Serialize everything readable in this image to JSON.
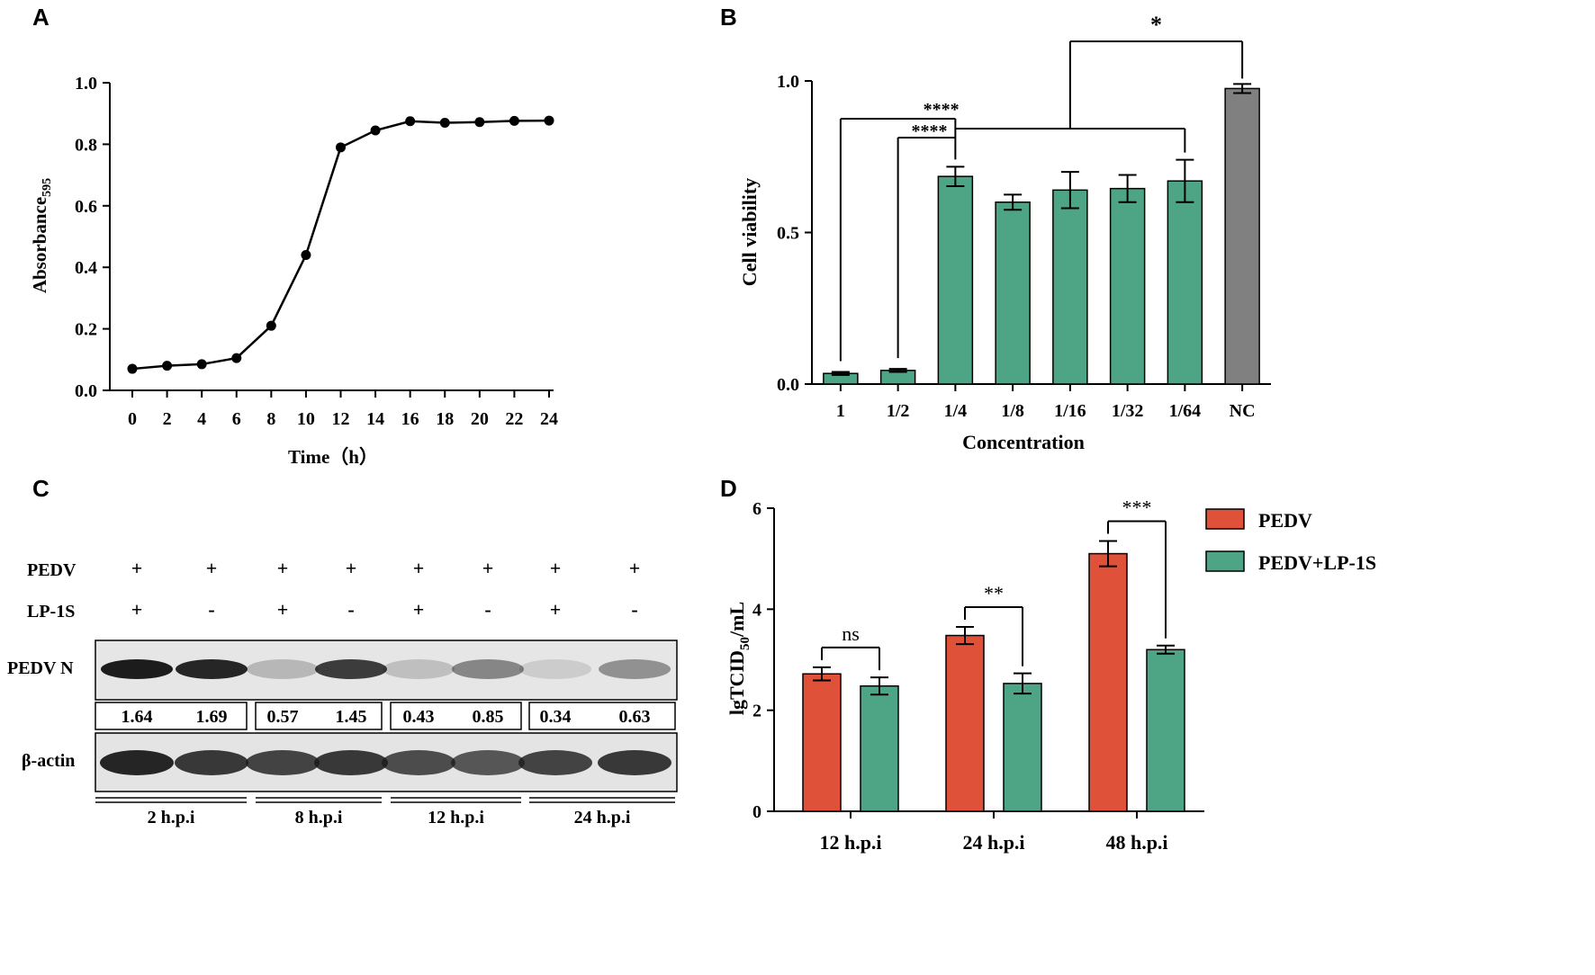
{
  "panels": {
    "a": "A",
    "b": "B",
    "c": "C",
    "d": "D"
  },
  "chart_data": [
    {
      "panel": "A",
      "type": "line",
      "title": "",
      "xlabel": "Time（h）",
      "ylabel": "Absorbance",
      "ylabel_sub": "595",
      "x": [
        0,
        2,
        4,
        6,
        8,
        10,
        12,
        14,
        16,
        18,
        20,
        22,
        24
      ],
      "values": [
        0.07,
        0.08,
        0.085,
        0.105,
        0.21,
        0.44,
        0.79,
        0.845,
        0.875,
        0.87,
        0.872,
        0.876,
        0.877
      ],
      "xticks": [
        "0",
        "2",
        "4",
        "6",
        "8",
        "10",
        "12",
        "14",
        "16",
        "18",
        "20",
        "22",
        "24"
      ],
      "yticks": [
        "0.0",
        "0.2",
        "0.4",
        "0.6",
        "0.8",
        "1.0"
      ],
      "ylim": [
        0,
        1.0
      ]
    },
    {
      "panel": "B",
      "type": "bar",
      "title": "",
      "xlabel": "Concentration",
      "ylabel": "Cell viability",
      "categories": [
        "1",
        "1/2",
        "1/4",
        "1/8",
        "1/16",
        "1/32",
        "1/64",
        "NC"
      ],
      "values": [
        0.035,
        0.045,
        0.685,
        0.6,
        0.64,
        0.645,
        0.67,
        0.975
      ],
      "errors": [
        0.005,
        0.005,
        0.032,
        0.025,
        0.06,
        0.045,
        0.07,
        0.015
      ],
      "colors": [
        "#4ea585",
        "#4ea585",
        "#4ea585",
        "#4ea585",
        "#4ea585",
        "#4ea585",
        "#4ea585",
        "#808080"
      ],
      "yticks": [
        "0.0",
        "0.5",
        "1.0"
      ],
      "ylim": [
        0,
        1.0
      ],
      "significance": [
        "****",
        "****",
        "*"
      ]
    },
    {
      "panel": "D",
      "type": "bar",
      "title": "",
      "xlabel": "",
      "ylabel": "lgTCID",
      "ylabel_sub": "50",
      "ylabel_tail": "/mL",
      "categories": [
        "12 h.p.i",
        "24 h.p.i",
        "48 h.p.i"
      ],
      "series": [
        {
          "name": "PEDV",
          "color": "#e0513a",
          "values": [
            2.72,
            3.48,
            5.1
          ],
          "errors": [
            0.13,
            0.17,
            0.25
          ]
        },
        {
          "name": "PEDV+LP-1S",
          "color": "#4ea585",
          "values": [
            2.48,
            2.53,
            3.2
          ],
          "errors": [
            0.17,
            0.2,
            0.08
          ]
        }
      ],
      "yticks": [
        "0",
        "2",
        "4",
        "6"
      ],
      "ylim": [
        0,
        6
      ],
      "significance": [
        "ns",
        "**",
        "***"
      ]
    }
  ],
  "blot": {
    "row_labels": {
      "pedv": "PEDV",
      "lp": "LP-1S",
      "band_n": "PEDV N",
      "band_actin": "β-actin"
    },
    "pedv_signs": [
      "+",
      "+",
      "+",
      "+",
      "+",
      "+",
      "+",
      "+"
    ],
    "lp_signs": [
      "+",
      "-",
      "+",
      "-",
      "+",
      "-",
      "+",
      "-"
    ],
    "quant_values": [
      "1.64",
      "1.69",
      "0.57",
      "1.45",
      "0.43",
      "0.85",
      "0.34",
      "0.63"
    ],
    "n_intensity": [
      0.95,
      0.9,
      0.22,
      0.8,
      0.18,
      0.45,
      0.12,
      0.4
    ],
    "actin_intensity": [
      0.95,
      0.85,
      0.8,
      0.85,
      0.75,
      0.7,
      0.8,
      0.85
    ],
    "groups": [
      "2 h.p.i",
      "8 h.p.i",
      "12 h.p.i",
      "24 h.p.i"
    ]
  }
}
